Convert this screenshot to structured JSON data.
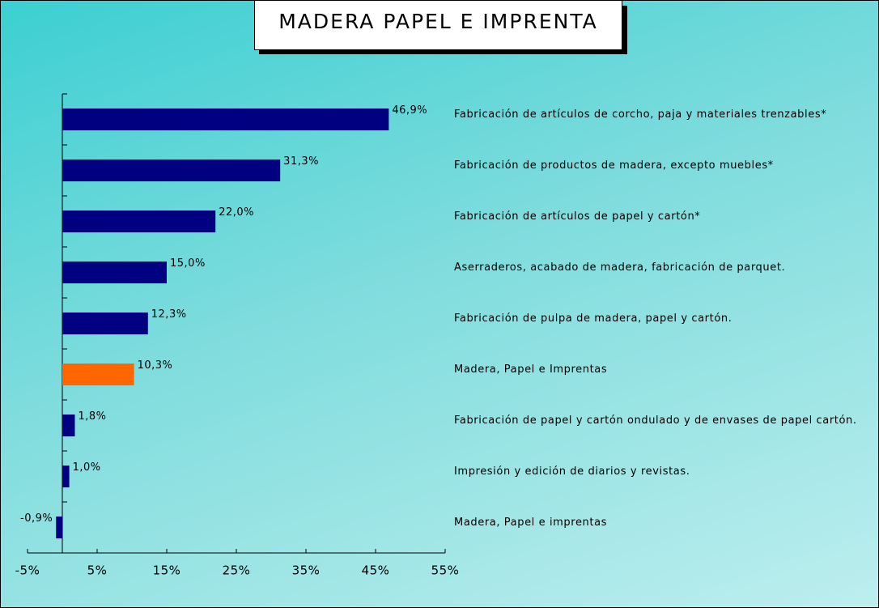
{
  "chart_data": {
    "type": "bar",
    "orientation": "horizontal",
    "title": "MADERA PAPEL E IMPRENTA",
    "categories": [
      "Fabricación de artículos de corcho, paja y materiales trenzables*",
      "Fabricación de productos de madera, excepto muebles*",
      "Fabricación de artículos de papel y cartón*",
      "Aserraderos, acabado de madera, fabricación de parquet.",
      "Fabricación de pulpa de madera, papel y cartón.",
      "Madera, Papel e Imprentas",
      "Fabricación de papel y cartón ondulado y de envases de papel cartón.",
      "Impresión y edición de diarios y revistas.",
      "Madera, Papel e imprentas"
    ],
    "values": [
      46.9,
      31.3,
      22.0,
      15.0,
      12.3,
      10.3,
      1.8,
      1.0,
      -0.9
    ],
    "value_labels": [
      "46,9%",
      "31,3%",
      "22,0%",
      "15,0%",
      "12,3%",
      "10,3%",
      "1,8%",
      "1,0%",
      "-0,9%"
    ],
    "colors": [
      "#000080",
      "#000080",
      "#000080",
      "#000080",
      "#000080",
      "#ff6600",
      "#000080",
      "#000080",
      "#000080"
    ],
    "xlim": [
      -5,
      55
    ],
    "xticks": [
      {
        "value": -5,
        "label": "-5%"
      },
      {
        "value": 5,
        "label": "5%"
      },
      {
        "value": 15,
        "label": "15%"
      },
      {
        "value": 25,
        "label": "25%"
      },
      {
        "value": 35,
        "label": "35%"
      },
      {
        "value": 45,
        "label": "45%"
      },
      {
        "value": 55,
        "label": "55%"
      }
    ]
  }
}
